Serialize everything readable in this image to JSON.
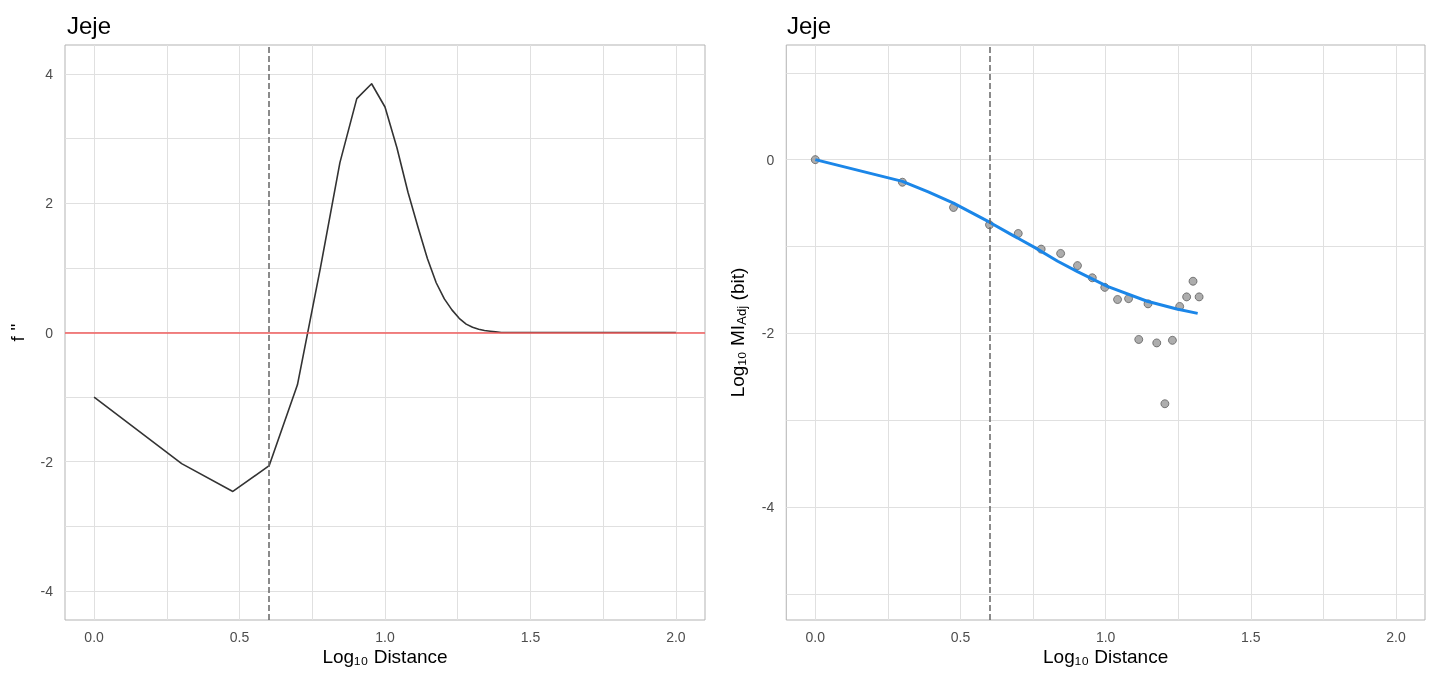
{
  "chart_data": [
    {
      "type": "line",
      "title": "Jeje",
      "xlabel": "Log₁₀ Distance",
      "ylabel": "f ''",
      "grid": true,
      "xlim": [
        -0.1,
        2.1
      ],
      "xticks": [
        {
          "value": 0,
          "label": "0.0"
        },
        {
          "value": 0.25,
          "label": null
        },
        {
          "value": 0.5,
          "label": "0.5"
        },
        {
          "value": 0.75,
          "label": null
        },
        {
          "value": 1,
          "label": "1.0"
        },
        {
          "value": 1.25,
          "label": null
        },
        {
          "value": 1.5,
          "label": "1.5"
        },
        {
          "value": 1.75,
          "label": null
        },
        {
          "value": 2,
          "label": "2.0"
        }
      ],
      "ylim": [
        -4.45,
        4.45
      ],
      "yticks": [
        -4,
        {
          "value": -3,
          "label": null
        },
        -2,
        {
          "value": -1,
          "label": null
        },
        0,
        {
          "value": 1,
          "label": null
        },
        2,
        {
          "value": 3,
          "label": null
        },
        4
      ],
      "series": [
        {
          "color": "#333333",
          "x": [
            0,
            0.301,
            0.477,
            0.602,
            0.699,
            0.778,
            0.845,
            0.903,
            0.954,
            1.0,
            1.041,
            1.079,
            1.114,
            1.146,
            1.176,
            1.204,
            1.23,
            1.255,
            1.279,
            1.301,
            1.322,
            1.342,
            1.362,
            1.38,
            1.4,
            1.5,
            2.0
          ],
          "values": [
            -1.0,
            -2.03,
            -2.46,
            -2.06,
            -0.81,
            1.0,
            2.63,
            3.62,
            3.85,
            3.49,
            2.86,
            2.17,
            1.62,
            1.14,
            0.77,
            0.52,
            0.35,
            0.22,
            0.13,
            0.08,
            0.05,
            0.03,
            0.02,
            0.01,
            0.0,
            0.0,
            0.0
          ]
        }
      ],
      "ref_lines": [
        {
          "axis": "x",
          "value": 0.602,
          "color": "#666666",
          "line_style": "dashed"
        },
        {
          "axis": "y",
          "value": 0,
          "color": "#f05d5d",
          "line_style": "solid"
        }
      ]
    },
    {
      "type": "scatter",
      "title": "Jeje",
      "xlabel": "Log₁₀ Distance",
      "ylabel": "Log₁₀ MI$_{Adj}$ (bit)",
      "grid": true,
      "xlim": [
        -0.1,
        2.1
      ],
      "xticks": [
        {
          "value": 0,
          "label": "0.0"
        },
        {
          "value": 0.25,
          "label": null
        },
        {
          "value": 0.5,
          "label": "0.5"
        },
        {
          "value": 0.75,
          "label": null
        },
        {
          "value": 1,
          "label": "1.0"
        },
        {
          "value": 1.25,
          "label": null
        },
        {
          "value": 1.5,
          "label": "1.5"
        },
        {
          "value": 1.75,
          "label": null
        },
        {
          "value": 2,
          "label": "2.0"
        }
      ],
      "ylim": [
        -5.3,
        1.32
      ],
      "yticks": [
        {
          "value": -5,
          "label": null
        },
        -4,
        {
          "value": -3,
          "label": null
        },
        -2,
        {
          "value": -1,
          "label": null
        },
        0,
        {
          "value": 1,
          "label": null
        }
      ],
      "series": [
        {
          "marker": "circle",
          "color": "#999999",
          "x": [
            0,
            0.3,
            0.476,
            0.6,
            0.699,
            0.778,
            0.845,
            0.903,
            0.954,
            0.997,
            1.041,
            1.079,
            1.114,
            1.146,
            1.176,
            1.204,
            1.23,
            1.255,
            1.279,
            1.301,
            1.322
          ],
          "values": [
            0,
            -0.26,
            -0.55,
            -0.75,
            -0.85,
            -1.03,
            -1.08,
            -1.22,
            -1.36,
            -1.47,
            -1.61,
            -1.6,
            -2.07,
            -1.66,
            -2.11,
            -2.81,
            -2.08,
            -1.69,
            -1.58,
            -1.4,
            -1.58
          ]
        },
        {
          "type": "line",
          "color": "#1b86e8",
          "x": [
            0,
            0.3,
            0.389,
            0.476,
            0.6,
            0.674,
            0.755,
            0.835,
            0.903,
            1.006,
            1.143,
            1.245,
            1.317
          ],
          "values": [
            0,
            -0.25,
            -0.37,
            -0.5,
            -0.72,
            -0.86,
            -1.01,
            -1.17,
            -1.29,
            -1.46,
            -1.63,
            -1.72,
            -1.77
          ]
        }
      ],
      "ref_lines": [
        {
          "axis": "x",
          "value": 0.602,
          "color": "#666666",
          "line_style": "dashed"
        }
      ]
    }
  ]
}
